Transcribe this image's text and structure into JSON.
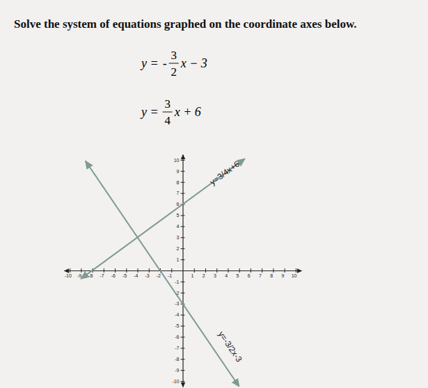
{
  "chart_data": {
    "type": "line",
    "title": "Solve the system of equations graphed on the coordinate axes below.",
    "equations": [
      {
        "left": "y =",
        "sign": "-",
        "numerator": "3",
        "denominator": "2",
        "right": "x − 3"
      },
      {
        "left": "y =",
        "sign": "",
        "numerator": "3",
        "denominator": "4",
        "right": "x + 6"
      }
    ],
    "series": [
      {
        "name": "y=3/4x+6",
        "color": "#7f9a93",
        "x": [
          -9,
          5.5
        ],
        "values": [
          -0.75,
          10.1
        ]
      },
      {
        "name": "y=-3/2x-3",
        "color": "#7f9a93",
        "x": [
          -8.6,
          5
        ],
        "values": [
          9.9,
          -10.5
        ]
      }
    ],
    "xlim": [
      -10.5,
      10.5
    ],
    "ylim": [
      -10.5,
      10.5
    ],
    "xticks": [
      -10,
      -9,
      -8,
      -7,
      -6,
      -5,
      -4,
      -3,
      -2,
      -1,
      1,
      2,
      3,
      4,
      5,
      6,
      7,
      8,
      9,
      10
    ],
    "yticks": [
      -10,
      -9,
      -8,
      -7,
      -6,
      -5,
      -4,
      -3,
      -2,
      -1,
      1,
      2,
      3,
      4,
      5,
      6,
      7,
      8,
      9,
      10
    ],
    "grid": false
  }
}
